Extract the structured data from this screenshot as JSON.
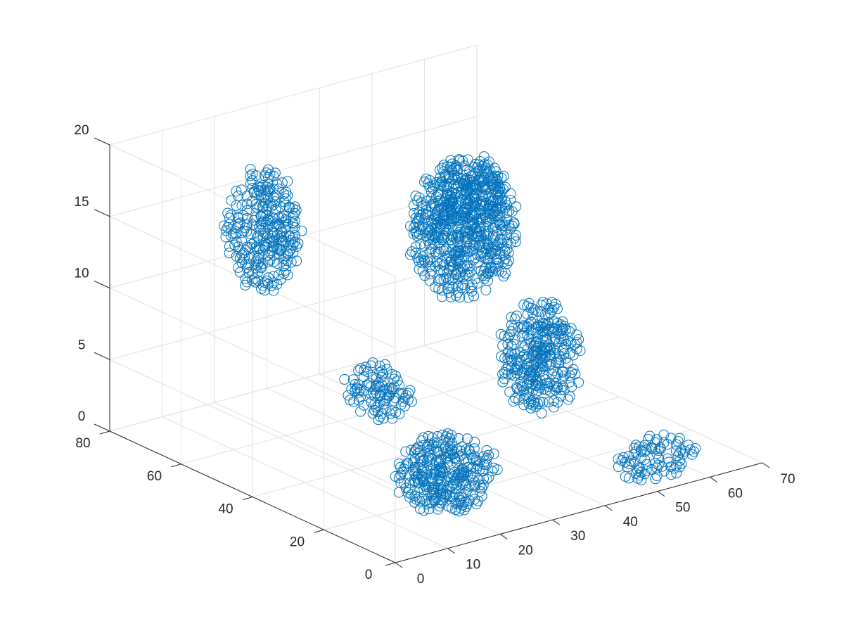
{
  "chart_data": {
    "type": "scatter",
    "projection": "3d",
    "title": "",
    "xlabel": "",
    "ylabel": "",
    "zlabel": "",
    "grid": true,
    "marker": "open-circle",
    "marker_color": "#0072bd",
    "xlim": [
      0,
      70
    ],
    "ylim": [
      0,
      80
    ],
    "zlim": [
      0,
      20
    ],
    "x_ticks": [
      0,
      10,
      20,
      30,
      40,
      50,
      60,
      70
    ],
    "x_tick_labels": [
      "0",
      "10",
      "20",
      "30",
      "40",
      "50",
      "60",
      "70"
    ],
    "y_ticks": [
      0,
      20,
      40,
      60,
      80
    ],
    "y_tick_labels": [
      "0",
      "20",
      "40",
      "60",
      "80"
    ],
    "z_ticks": [
      0,
      5,
      10,
      15,
      20
    ],
    "z_tick_labels": [
      "0",
      "5",
      "10",
      "15",
      "20"
    ],
    "clusters": [
      {
        "x": [
          14,
          24
        ],
        "y": [
          58,
          72
        ],
        "z": [
          10,
          18
        ]
      },
      {
        "x": [
          40,
          58
        ],
        "y": [
          45,
          60
        ],
        "z": [
          8,
          17
        ]
      },
      {
        "x": [
          48,
          58
        ],
        "y": [
          52,
          62
        ],
        "z": [
          12,
          16
        ]
      },
      {
        "x": [
          44,
          56
        ],
        "y": [
          26,
          40
        ],
        "z": [
          2,
          9
        ]
      },
      {
        "x": [
          22,
          30
        ],
        "y": [
          36,
          50
        ],
        "z": [
          3,
          6
        ]
      },
      {
        "x": [
          14,
          30
        ],
        "y": [
          10,
          26
        ],
        "z": [
          0,
          4
        ]
      },
      {
        "x": [
          48,
          62
        ],
        "y": [
          4,
          12
        ],
        "z": [
          0,
          2
        ]
      }
    ]
  }
}
